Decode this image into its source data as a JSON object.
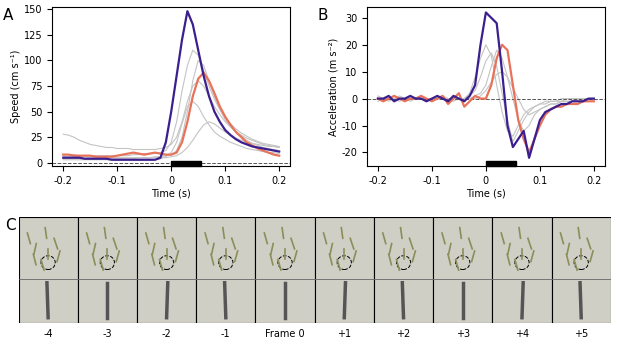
{
  "chart_data": [
    {
      "type": "line",
      "panel": "A",
      "x_label": "Time (s)",
      "y_label": "Speed (cm s⁻¹)",
      "xlim": [
        -0.22,
        0.22
      ],
      "xticks": [
        -0.2,
        -0.1,
        0,
        0.1,
        0.2
      ],
      "ylim": [
        -3,
        152
      ],
      "yticks": [
        0,
        25,
        50,
        75,
        100,
        125,
        150
      ],
      "hline": 0,
      "bar_interval": [
        0,
        0.055
      ],
      "x": [
        -0.2,
        -0.19,
        -0.18,
        -0.17,
        -0.16,
        -0.15,
        -0.14,
        -0.13,
        -0.12,
        -0.11,
        -0.1,
        -0.09,
        -0.08,
        -0.07,
        -0.06,
        -0.05,
        -0.04,
        -0.03,
        -0.02,
        -0.01,
        0,
        0.01,
        0.02,
        0.03,
        0.04,
        0.05,
        0.06,
        0.07,
        0.08,
        0.09,
        0.1,
        0.11,
        0.12,
        0.13,
        0.14,
        0.15,
        0.16,
        0.17,
        0.18,
        0.19,
        0.2
      ],
      "series": [
        {
          "color": "#c4c4c4",
          "values": [
            4,
            4,
            4,
            4,
            4,
            4,
            4,
            4,
            4,
            4,
            4,
            4,
            4,
            4,
            5,
            5,
            5,
            6,
            6,
            7,
            8,
            12,
            25,
            50,
            80,
            100,
            95,
            80,
            65,
            52,
            42,
            35,
            30,
            26,
            22,
            19,
            17,
            15,
            14,
            13,
            12
          ]
        },
        {
          "color": "#c4c4c4",
          "values": [
            28,
            27,
            25,
            22,
            20,
            18,
            17,
            16,
            15,
            15,
            14,
            14,
            14,
            13,
            13,
            13,
            13,
            13,
            14,
            15,
            18,
            25,
            40,
            60,
            75,
            80,
            75,
            65,
            55,
            47,
            40,
            35,
            30,
            27,
            24,
            22,
            20,
            18,
            17,
            16,
            15
          ]
        },
        {
          "color": "#c4c4c4",
          "values": [
            6,
            6,
            6,
            6,
            6,
            5,
            5,
            5,
            5,
            5,
            5,
            5,
            5,
            5,
            5,
            5,
            5,
            5,
            5,
            5,
            6,
            7,
            10,
            15,
            22,
            30,
            37,
            40,
            38,
            34,
            30,
            27,
            24,
            22,
            20,
            19,
            18,
            17,
            16,
            16,
            15
          ]
        },
        {
          "color": "#c4c4c4",
          "values": [
            3,
            3,
            3,
            3,
            3,
            3,
            3,
            3,
            3,
            3,
            3,
            3,
            3,
            3,
            3,
            3,
            3,
            3,
            4,
            6,
            10,
            20,
            38,
            55,
            60,
            55,
            45,
            37,
            30,
            26,
            23,
            20,
            18,
            16,
            14,
            13,
            12,
            11,
            10,
            10,
            9
          ]
        },
        {
          "color": "#c4c4c4",
          "values": [
            8,
            8,
            8,
            7,
            7,
            7,
            7,
            7,
            7,
            7,
            7,
            7,
            7,
            8,
            8,
            9,
            9,
            9,
            10,
            12,
            20,
            40,
            70,
            95,
            110,
            105,
            90,
            75,
            62,
            52,
            44,
            38,
            33,
            29,
            26,
            23,
            21,
            19,
            18,
            17,
            16
          ]
        },
        {
          "color": "#e8735a",
          "values": [
            8,
            8,
            7,
            7,
            7,
            7,
            6,
            6,
            6,
            6,
            7,
            8,
            9,
            10,
            9,
            8,
            9,
            10,
            9,
            8,
            8,
            10,
            20,
            40,
            65,
            82,
            88,
            80,
            68,
            55,
            45,
            37,
            30,
            25,
            20,
            17,
            14,
            12,
            10,
            8,
            7
          ]
        },
        {
          "color": "#3b1f8f",
          "values": [
            5,
            5,
            5,
            5,
            4,
            4,
            4,
            4,
            4,
            3,
            3,
            3,
            3,
            3,
            3,
            3,
            3,
            3,
            5,
            20,
            50,
            85,
            120,
            148,
            135,
            110,
            85,
            65,
            50,
            40,
            32,
            27,
            23,
            20,
            18,
            16,
            15,
            14,
            13,
            12,
            11
          ]
        }
      ]
    },
    {
      "type": "line",
      "panel": "B",
      "x_label": "Time (s)",
      "y_label": "Acceleration (m s⁻²)",
      "xlim": [
        -0.22,
        0.22
      ],
      "xticks": [
        -0.2,
        -0.1,
        0,
        0.1,
        0.2
      ],
      "ylim": [
        -25,
        34
      ],
      "yticks": [
        -20,
        -10,
        0,
        10,
        20,
        30
      ],
      "hline": 0,
      "bar_interval": [
        0,
        0.055
      ],
      "x": [
        -0.2,
        -0.19,
        -0.18,
        -0.17,
        -0.16,
        -0.15,
        -0.14,
        -0.13,
        -0.12,
        -0.11,
        -0.1,
        -0.09,
        -0.08,
        -0.07,
        -0.06,
        -0.05,
        -0.04,
        -0.03,
        -0.02,
        -0.01,
        0,
        0.01,
        0.02,
        0.03,
        0.04,
        0.05,
        0.06,
        0.07,
        0.08,
        0.09,
        0.1,
        0.11,
        0.12,
        0.13,
        0.14,
        0.15,
        0.16,
        0.17,
        0.18,
        0.19,
        0.2
      ],
      "series": [
        {
          "color": "#c4c4c4",
          "values": [
            0,
            0,
            0,
            0,
            0,
            0,
            0,
            0,
            0,
            0,
            0,
            0,
            0,
            0,
            0,
            0,
            0,
            0,
            1,
            2,
            5,
            12,
            18,
            15,
            8,
            0,
            -8,
            -12,
            -10,
            -6,
            -4,
            -3,
            -2,
            -2,
            -1,
            -1,
            -1,
            0,
            0,
            0,
            0
          ]
        },
        {
          "color": "#c4c4c4",
          "values": [
            1,
            0,
            -1,
            0,
            1,
            0,
            -1,
            0,
            1,
            0,
            -1,
            0,
            1,
            0,
            -1,
            0,
            0,
            2,
            8,
            15,
            20,
            16,
            5,
            -5,
            -12,
            -14,
            -10,
            -6,
            -4,
            -3,
            -2,
            -2,
            -1,
            -1,
            -1,
            0,
            0,
            0,
            0,
            0,
            0
          ]
        },
        {
          "color": "#c4c4c4",
          "values": [
            0,
            0,
            0,
            0,
            0,
            0,
            0,
            0,
            0,
            0,
            0,
            0,
            0,
            0,
            0,
            0,
            0,
            0,
            0,
            1,
            3,
            6,
            9,
            10,
            8,
            4,
            0,
            -4,
            -6,
            -5,
            -4,
            -3,
            -2,
            -2,
            -1,
            -1,
            -1,
            0,
            0,
            0,
            0
          ]
        },
        {
          "color": "#c4c4c4",
          "values": [
            -1,
            0,
            0,
            0,
            -1,
            0,
            0,
            0,
            0,
            0,
            0,
            0,
            0,
            0,
            0,
            0,
            0,
            1,
            3,
            8,
            14,
            17,
            12,
            2,
            -8,
            -16,
            -12,
            -8,
            -5,
            -3,
            -2,
            -1,
            -1,
            -1,
            0,
            0,
            0,
            0,
            0,
            0,
            0
          ]
        },
        {
          "color": "#e8735a",
          "values": [
            0,
            -1,
            0,
            1,
            0,
            -1,
            0,
            0,
            1,
            0,
            -1,
            0,
            1,
            -2,
            0,
            2,
            -3,
            -1,
            1,
            0,
            0,
            5,
            15,
            20,
            18,
            5,
            -8,
            -15,
            -20,
            -15,
            -10,
            -6,
            -4,
            -3,
            -3,
            -2,
            -2,
            -2,
            -1,
            -1,
            -1
          ]
        },
        {
          "color": "#3b1f8f",
          "values": [
            0,
            0,
            1,
            -1,
            0,
            0,
            1,
            0,
            0,
            -1,
            0,
            1,
            0,
            -1,
            1,
            0,
            -1,
            1,
            5,
            20,
            32,
            30,
            28,
            10,
            -10,
            -18,
            -15,
            -12,
            -22,
            -15,
            -8,
            -5,
            -4,
            -3,
            -2,
            -2,
            -1,
            -1,
            -1,
            0,
            0
          ]
        }
      ]
    }
  ],
  "image_strip": {
    "panel": "C",
    "frames": [
      "-4",
      "-3",
      "-2",
      "-1",
      "Frame 0",
      "+1",
      "+2",
      "+3",
      "+4",
      "+5"
    ]
  }
}
